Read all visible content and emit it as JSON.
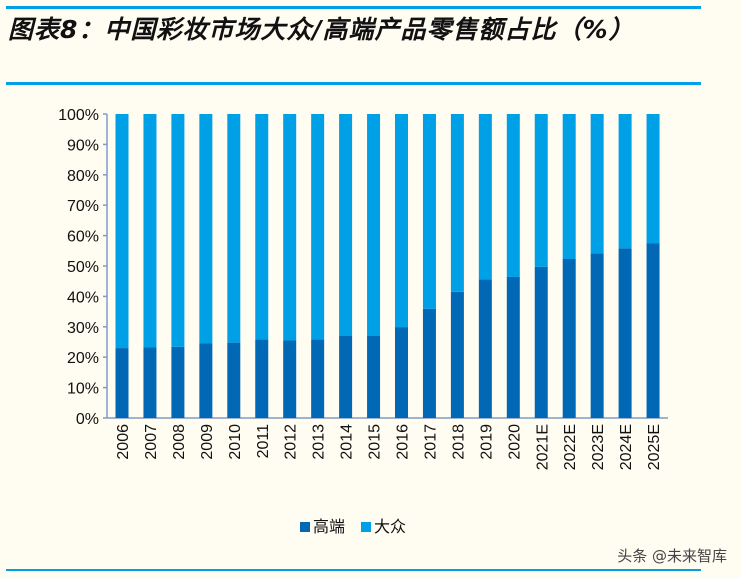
{
  "title": "图表8：中国彩妆市场大众/高端产品零售额占比（%）",
  "watermark": "头条 @未来智库",
  "colors": {
    "高端": "#0068b4",
    "大众": "#00a0e6",
    "rule": "#00a0e6",
    "background": "#fffcf2"
  },
  "chart_data": {
    "type": "bar",
    "stacked": true,
    "percent_stacked": true,
    "categories": [
      "2006",
      "2007",
      "2008",
      "2009",
      "2010",
      "2011",
      "2012",
      "2013",
      "2014",
      "2015",
      "2016",
      "2017",
      "2018",
      "2019",
      "2020",
      "2021E",
      "2022E",
      "2023E",
      "2024E",
      "2025E"
    ],
    "series": [
      {
        "name": "高端",
        "values": [
          23.0,
          23.2,
          23.4,
          24.5,
          24.8,
          25.8,
          25.5,
          25.9,
          27.1,
          27.1,
          29.9,
          35.9,
          41.5,
          45.6,
          46.4,
          49.7,
          52.3,
          54.2,
          55.8,
          57.4
        ]
      },
      {
        "name": "大众",
        "values": [
          77.0,
          76.8,
          76.6,
          75.5,
          75.2,
          74.2,
          74.5,
          74.1,
          72.9,
          72.9,
          70.1,
          64.1,
          58.5,
          54.4,
          53.6,
          50.3,
          47.7,
          45.8,
          44.2,
          42.6
        ]
      }
    ],
    "yticks": [
      "0%",
      "10%",
      "20%",
      "30%",
      "40%",
      "50%",
      "60%",
      "70%",
      "80%",
      "90%",
      "100%"
    ],
    "ylim": [
      0,
      100
    ],
    "grid": false,
    "legend": "bottom"
  }
}
